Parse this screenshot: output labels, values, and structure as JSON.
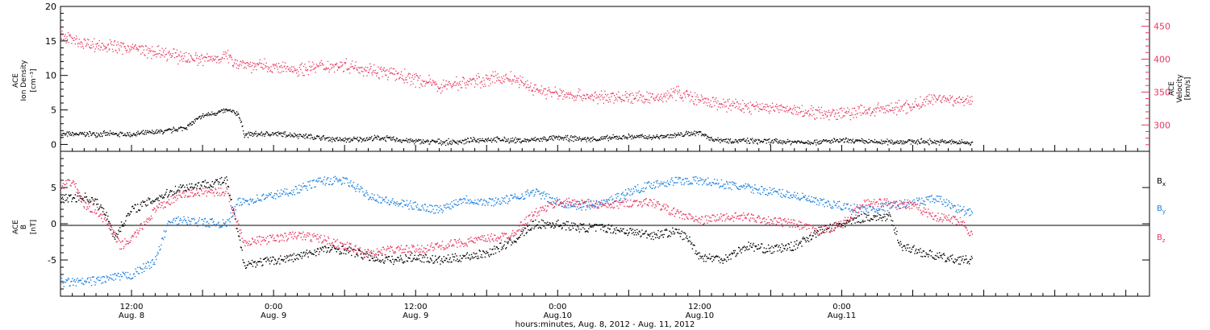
{
  "chart_data": [
    {
      "type": "scatter",
      "panel": "top",
      "ylabel_left": [
        "ACE",
        "Ion Density",
        "[cm⁻³]"
      ],
      "ylabel_right": [
        "ACE",
        "Velocity",
        "[km/s]"
      ],
      "ylim_left": [
        -1,
        20
      ],
      "ylim_right": [
        260,
        480
      ],
      "yticks_left": [
        "20",
        "15",
        "10",
        "5",
        "0"
      ],
      "yticks_right": [
        "450",
        "400",
        "350",
        "300"
      ],
      "series": [
        {
          "axis": "left",
          "color": "#000000",
          "points": [
            [
              0,
              1.5
            ],
            [
              3,
              1.6
            ],
            [
              6,
              1.5
            ],
            [
              9,
              2.0
            ],
            [
              10.5,
              2.5
            ],
            [
              12,
              4.2
            ],
            [
              13,
              4.6
            ],
            [
              14,
              5.0
            ],
            [
              15,
              4.5
            ],
            [
              15.5,
              1.5
            ],
            [
              18,
              1.6
            ],
            [
              20,
              1.4
            ],
            [
              22,
              1.0
            ],
            [
              24,
              0.7
            ],
            [
              27,
              1.0
            ],
            [
              30,
              0.5
            ],
            [
              33,
              0.4
            ],
            [
              36,
              0.8
            ],
            [
              39,
              0.6
            ],
            [
              42,
              1.0
            ],
            [
              45,
              0.8
            ],
            [
              48,
              1.2
            ],
            [
              50,
              1.1
            ],
            [
              52,
              1.4
            ],
            [
              54,
              1.8
            ],
            [
              55,
              0.8
            ],
            [
              57,
              0.6
            ],
            [
              60,
              0.5
            ],
            [
              63,
              0.4
            ],
            [
              66,
              0.6
            ],
            [
              69,
              0.4
            ],
            [
              72,
              0.5
            ],
            [
              75,
              0.4
            ],
            [
              77,
              0.3
            ]
          ]
        },
        {
          "axis": "right",
          "color": "#e8365f",
          "points": [
            [
              0,
              435
            ],
            [
              2,
              425
            ],
            [
              4,
              420
            ],
            [
              6,
              418
            ],
            [
              8,
              410
            ],
            [
              10,
              405
            ],
            [
              12,
              400
            ],
            [
              14,
              405
            ],
            [
              15,
              395
            ],
            [
              16,
              392
            ],
            [
              18,
              388
            ],
            [
              20,
              385
            ],
            [
              22,
              390
            ],
            [
              24,
              392
            ],
            [
              26,
              385
            ],
            [
              28,
              378
            ],
            [
              30,
              370
            ],
            [
              32,
              360
            ],
            [
              34,
              365
            ],
            [
              36,
              370
            ],
            [
              38,
              372
            ],
            [
              40,
              355
            ],
            [
              42,
              348
            ],
            [
              44,
              345
            ],
            [
              46,
              342
            ],
            [
              48,
              343
            ],
            [
              50,
              340
            ],
            [
              52,
              350
            ],
            [
              53,
              345
            ],
            [
              54,
              337
            ],
            [
              56,
              332
            ],
            [
              58,
              328
            ],
            [
              60,
              327
            ],
            [
              62,
              322
            ],
            [
              64,
              320
            ],
            [
              66,
              318
            ],
            [
              68,
              322
            ],
            [
              70,
              325
            ],
            [
              72,
              330
            ],
            [
              74,
              342
            ],
            [
              76,
              338
            ],
            [
              77,
              335
            ]
          ]
        }
      ]
    },
    {
      "type": "scatter",
      "panel": "bottom",
      "ylabel_left": [
        "ACE",
        "B",
        "[nT]"
      ],
      "ylim": [
        -10,
        10
      ],
      "yticks": [
        "5",
        "0",
        "-5"
      ],
      "legend_position": "right",
      "series": [
        {
          "name": "B",
          "subscript": "x",
          "color": "#000000",
          "points": [
            [
              0,
              3.5
            ],
            [
              2,
              3.8
            ],
            [
              3,
              3.0
            ],
            [
              4,
              1.0
            ],
            [
              4.5,
              -2.0
            ],
            [
              5,
              -0.5
            ],
            [
              6,
              2.0
            ],
            [
              8,
              3.5
            ],
            [
              10,
              5.0
            ],
            [
              12,
              5.5
            ],
            [
              14,
              6.0
            ],
            [
              15.5,
              -5.5
            ],
            [
              18,
              -5.0
            ],
            [
              20,
              -4.5
            ],
            [
              22,
              -3.5
            ],
            [
              24,
              -3.5
            ],
            [
              26,
              -4.5
            ],
            [
              28,
              -5.0
            ],
            [
              30,
              -4.5
            ],
            [
              32,
              -5.0
            ],
            [
              34,
              -4.5
            ],
            [
              36,
              -4.0
            ],
            [
              38,
              -2.5
            ],
            [
              40,
              0.0
            ],
            [
              42,
              0.0
            ],
            [
              44,
              -0.5
            ],
            [
              46,
              -0.5
            ],
            [
              48,
              -1.0
            ],
            [
              50,
              -1.5
            ],
            [
              52,
              -1.0
            ],
            [
              53,
              -2.0
            ],
            [
              54,
              -4.5
            ],
            [
              56,
              -4.8
            ],
            [
              58,
              -3.0
            ],
            [
              60,
              -3.5
            ],
            [
              62,
              -3.0
            ],
            [
              64,
              -1.0
            ],
            [
              66,
              0.0
            ],
            [
              68,
              1.0
            ],
            [
              70,
              1.0
            ],
            [
              71,
              -3.0
            ],
            [
              73,
              -4.0
            ],
            [
              75,
              -4.8
            ],
            [
              77,
              -5.0
            ]
          ]
        },
        {
          "name": "B",
          "subscript": "y",
          "color": "#1a80e0",
          "points": [
            [
              0,
              -8.0
            ],
            [
              2,
              -8.0
            ],
            [
              4,
              -7.5
            ],
            [
              6,
              -7.0
            ],
            [
              8,
              -5.0
            ],
            [
              9,
              0.0
            ],
            [
              10,
              0.5
            ],
            [
              12,
              0.3
            ],
            [
              14,
              0.0
            ],
            [
              15,
              3.0
            ],
            [
              18,
              4.0
            ],
            [
              20,
              4.8
            ],
            [
              22,
              6.0
            ],
            [
              24,
              6.0
            ],
            [
              26,
              4.0
            ],
            [
              28,
              3.0
            ],
            [
              30,
              2.5
            ],
            [
              32,
              2.0
            ],
            [
              34,
              3.5
            ],
            [
              36,
              3.0
            ],
            [
              38,
              3.5
            ],
            [
              40,
              4.5
            ],
            [
              42,
              3.0
            ],
            [
              44,
              2.5
            ],
            [
              46,
              3.0
            ],
            [
              48,
              4.5
            ],
            [
              50,
              5.5
            ],
            [
              52,
              6.0
            ],
            [
              54,
              6.0
            ],
            [
              56,
              5.5
            ],
            [
              58,
              5.0
            ],
            [
              60,
              4.5
            ],
            [
              62,
              4.0
            ],
            [
              64,
              3.0
            ],
            [
              66,
              2.5
            ],
            [
              68,
              2.0
            ],
            [
              70,
              2.5
            ],
            [
              72,
              3.0
            ],
            [
              74,
              3.5
            ],
            [
              76,
              2.0
            ],
            [
              77,
              1.5
            ]
          ]
        },
        {
          "name": "B",
          "subscript": "z",
          "color": "#e8365f",
          "points": [
            [
              0,
              5.0
            ],
            [
              1,
              6.0
            ],
            [
              2,
              2.5
            ],
            [
              3,
              2.0
            ],
            [
              4,
              0.0
            ],
            [
              5,
              -3.0
            ],
            [
              6,
              -2.0
            ],
            [
              8,
              2.0
            ],
            [
              10,
              4.0
            ],
            [
              12,
              4.5
            ],
            [
              14,
              4.5
            ],
            [
              15.5,
              -2.5
            ],
            [
              18,
              -2.0
            ],
            [
              20,
              -1.5
            ],
            [
              22,
              -2.0
            ],
            [
              24,
              -3.0
            ],
            [
              26,
              -4.0
            ],
            [
              28,
              -3.5
            ],
            [
              30,
              -3.5
            ],
            [
              32,
              -3.0
            ],
            [
              34,
              -2.5
            ],
            [
              36,
              -2.0
            ],
            [
              38,
              -1.5
            ],
            [
              40,
              1.5
            ],
            [
              42,
              3.0
            ],
            [
              44,
              3.0
            ],
            [
              46,
              2.5
            ],
            [
              48,
              3.0
            ],
            [
              50,
              3.0
            ],
            [
              52,
              1.5
            ],
            [
              54,
              0.5
            ],
            [
              56,
              1.0
            ],
            [
              58,
              1.0
            ],
            [
              60,
              0.5
            ],
            [
              62,
              0.0
            ],
            [
              64,
              -1.0
            ],
            [
              66,
              0.0
            ],
            [
              68,
              3.0
            ],
            [
              70,
              3.0
            ],
            [
              72,
              2.5
            ],
            [
              74,
              1.0
            ],
            [
              76,
              0.5
            ],
            [
              77,
              -1.5
            ]
          ]
        }
      ]
    }
  ],
  "x_axis": {
    "hours_range": [
      0,
      92
    ],
    "ticks": [
      {
        "hours": 6,
        "time": "12:00",
        "date": "Aug. 8"
      },
      {
        "hours": 18,
        "time": "0:00",
        "date": "Aug. 9"
      },
      {
        "hours": 30,
        "time": "12:00",
        "date": "Aug. 9"
      },
      {
        "hours": 42,
        "time": "0:00",
        "date": "Aug.10"
      },
      {
        "hours": 54,
        "time": "12:00",
        "date": "Aug.10"
      },
      {
        "hours": 66,
        "time": "0:00",
        "date": "Aug.11"
      }
    ],
    "title": "hours:minutes, Aug.  8, 2012 - Aug. 11, 2012"
  }
}
